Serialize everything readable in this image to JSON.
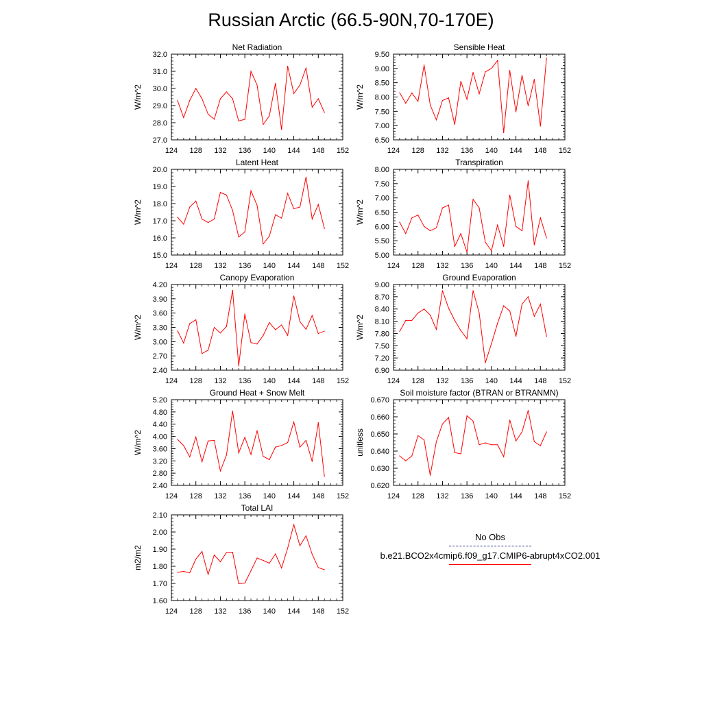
{
  "figure": {
    "title": "Russian Arctic (66.5-90N,70-170E)"
  },
  "legend": {
    "obs_label": "No Obs",
    "obs_color": "#1a237e",
    "model_label": "b.e21.BCO2x4cmip6.f09_g17.CMIP6-abrupt4xCO2.001",
    "model_color": "#ff0000"
  },
  "chart_data": [
    {
      "type": "line",
      "title": "Net Radiation",
      "ylabel": "W/m^2",
      "xlim": [
        124,
        152
      ],
      "ylim": [
        27.0,
        32.0
      ],
      "xticks": [
        124,
        128,
        132,
        136,
        140,
        144,
        148,
        152
      ],
      "yticks": [
        "27.0",
        "28.0",
        "29.0",
        "30.0",
        "31.0",
        "32.0"
      ],
      "series": [
        {
          "color": "#ff0000",
          "x": [
            125,
            126,
            127,
            128,
            129,
            130,
            131,
            132,
            133,
            134,
            135,
            136,
            137,
            138,
            139,
            140,
            141,
            142,
            143,
            144,
            145,
            146,
            147,
            148,
            149
          ],
          "y": [
            29.3,
            28.3,
            29.3,
            30.0,
            29.4,
            28.5,
            28.2,
            29.4,
            29.8,
            29.4,
            28.1,
            28.2,
            31.0,
            30.2,
            27.9,
            28.4,
            30.3,
            27.6,
            31.3,
            29.7,
            30.2,
            31.2,
            28.9,
            29.4,
            28.6
          ]
        }
      ]
    },
    {
      "type": "line",
      "title": "Sensible Heat",
      "ylabel": "W/m^2",
      "xlim": [
        124,
        152
      ],
      "ylim": [
        6.5,
        9.5
      ],
      "xticks": [
        124,
        128,
        132,
        136,
        140,
        144,
        148,
        152
      ],
      "yticks": [
        "6.50",
        "7.00",
        "7.50",
        "8.00",
        "8.50",
        "9.00",
        "9.50"
      ],
      "series": [
        {
          "color": "#ff0000",
          "x": [
            125,
            126,
            127,
            128,
            129,
            130,
            131,
            132,
            133,
            134,
            135,
            136,
            137,
            138,
            139,
            140,
            141,
            142,
            143,
            144,
            145,
            146,
            147,
            148,
            149
          ],
          "y": [
            8.15,
            7.78,
            8.14,
            7.85,
            9.12,
            7.72,
            7.2,
            7.88,
            7.97,
            7.04,
            8.55,
            7.92,
            8.86,
            8.11,
            8.88,
            9.0,
            9.28,
            6.75,
            8.93,
            7.48,
            8.76,
            7.69,
            8.62,
            6.98,
            9.37
          ]
        }
      ]
    },
    {
      "type": "line",
      "title": "Latent Heat",
      "ylabel": "W/m^2",
      "xlim": [
        124,
        152
      ],
      "ylim": [
        15.0,
        20.0
      ],
      "xticks": [
        124,
        128,
        132,
        136,
        140,
        144,
        148,
        152
      ],
      "yticks": [
        "15.0",
        "16.0",
        "17.0",
        "18.0",
        "19.0",
        "20.0"
      ],
      "series": [
        {
          "color": "#ff0000",
          "x": [
            125,
            126,
            127,
            128,
            129,
            130,
            131,
            132,
            133,
            134,
            135,
            136,
            137,
            138,
            139,
            140,
            141,
            142,
            143,
            144,
            145,
            146,
            147,
            148,
            149
          ],
          "y": [
            17.2,
            16.8,
            17.8,
            18.15,
            17.1,
            16.9,
            17.1,
            18.65,
            18.5,
            17.6,
            16.05,
            16.35,
            18.75,
            17.9,
            15.65,
            16.1,
            17.35,
            17.15,
            18.6,
            17.7,
            17.8,
            19.55,
            17.1,
            17.95,
            16.55
          ]
        }
      ]
    },
    {
      "type": "line",
      "title": "Transpiration",
      "ylabel": "W/m^2",
      "xlim": [
        124,
        152
      ],
      "ylim": [
        5.0,
        8.0
      ],
      "xticks": [
        124,
        128,
        132,
        136,
        140,
        144,
        148,
        152
      ],
      "yticks": [
        "5.00",
        "5.50",
        "6.00",
        "6.50",
        "7.00",
        "7.50",
        "8.00"
      ],
      "series": [
        {
          "color": "#ff0000",
          "x": [
            125,
            126,
            127,
            128,
            129,
            130,
            131,
            132,
            133,
            134,
            135,
            136,
            137,
            138,
            139,
            140,
            141,
            142,
            143,
            144,
            145,
            146,
            147,
            148,
            149
          ],
          "y": [
            6.15,
            5.75,
            6.3,
            6.4,
            6.0,
            5.85,
            5.95,
            6.65,
            6.75,
            5.3,
            5.75,
            5.1,
            6.95,
            6.65,
            5.45,
            5.15,
            6.05,
            5.3,
            7.1,
            6.0,
            5.85,
            7.6,
            5.35,
            6.3,
            5.6
          ]
        }
      ]
    },
    {
      "type": "line",
      "title": "Canopy Evaporation",
      "ylabel": "W/m^2",
      "xlim": [
        124,
        152
      ],
      "ylim": [
        2.4,
        4.2
      ],
      "xticks": [
        124,
        128,
        132,
        136,
        140,
        144,
        148,
        152
      ],
      "yticks": [
        "2.40",
        "2.70",
        "3.00",
        "3.30",
        "3.60",
        "3.90",
        "4.20"
      ],
      "series": [
        {
          "color": "#ff0000",
          "x": [
            125,
            126,
            127,
            128,
            129,
            130,
            131,
            132,
            133,
            134,
            135,
            136,
            137,
            138,
            139,
            140,
            141,
            142,
            143,
            144,
            145,
            146,
            147,
            148,
            149
          ],
          "y": [
            3.23,
            2.97,
            3.38,
            3.46,
            2.75,
            2.82,
            3.3,
            3.18,
            3.32,
            4.08,
            2.49,
            3.58,
            2.98,
            2.95,
            3.13,
            3.4,
            3.25,
            3.35,
            3.13,
            3.96,
            3.42,
            3.26,
            3.55,
            3.17,
            3.22
          ]
        }
      ]
    },
    {
      "type": "line",
      "title": "Ground Evaporation",
      "ylabel": "W/m^2",
      "xlim": [
        124,
        152
      ],
      "ylim": [
        6.9,
        9.0
      ],
      "xticks": [
        124,
        128,
        132,
        136,
        140,
        144,
        148,
        152
      ],
      "yticks": [
        "6.90",
        "7.20",
        "7.50",
        "7.80",
        "8.10",
        "8.40",
        "8.70",
        "9.00"
      ],
      "series": [
        {
          "color": "#ff0000",
          "x": [
            125,
            126,
            127,
            128,
            129,
            130,
            131,
            132,
            133,
            134,
            135,
            136,
            137,
            138,
            139,
            140,
            141,
            142,
            143,
            144,
            145,
            146,
            147,
            148,
            149
          ],
          "y": [
            7.85,
            8.12,
            8.12,
            8.3,
            8.4,
            8.25,
            7.9,
            8.85,
            8.42,
            8.12,
            7.87,
            7.67,
            8.85,
            8.3,
            7.08,
            7.55,
            8.05,
            8.48,
            8.35,
            7.73,
            8.52,
            8.7,
            8.22,
            8.52,
            7.73
          ]
        }
      ]
    },
    {
      "type": "line",
      "title": "Ground Heat + Snow Melt",
      "ylabel": "W/m^2",
      "xlim": [
        124,
        152
      ],
      "ylim": [
        2.4,
        5.2
      ],
      "xticks": [
        124,
        128,
        132,
        136,
        140,
        144,
        148,
        152
      ],
      "yticks": [
        "2.40",
        "2.80",
        "3.20",
        "3.60",
        "4.00",
        "4.40",
        "4.80",
        "5.20"
      ],
      "series": [
        {
          "color": "#ff0000",
          "x": [
            125,
            126,
            127,
            128,
            129,
            130,
            131,
            132,
            133,
            134,
            135,
            136,
            137,
            138,
            139,
            140,
            141,
            142,
            143,
            144,
            145,
            146,
            147,
            148,
            149
          ],
          "y": [
            3.9,
            3.7,
            3.33,
            3.98,
            3.17,
            3.85,
            3.87,
            2.87,
            3.39,
            4.83,
            3.46,
            3.97,
            3.41,
            4.19,
            3.35,
            3.24,
            3.65,
            3.7,
            3.8,
            4.47,
            3.65,
            3.87,
            3.18,
            4.45,
            2.69
          ]
        }
      ]
    },
    {
      "type": "line",
      "title": "Soil moisture factor (BTRAN or BTRANMN)",
      "ylabel": "unitless",
      "xlim": [
        124,
        152
      ],
      "ylim": [
        0.62,
        0.67
      ],
      "xticks": [
        124,
        128,
        132,
        136,
        140,
        144,
        148,
        152
      ],
      "yticks": [
        "0.620",
        "0.630",
        "0.640",
        "0.650",
        "0.660",
        "0.670"
      ],
      "series": [
        {
          "color": "#ff0000",
          "x": [
            125,
            126,
            127,
            128,
            129,
            130,
            131,
            132,
            133,
            134,
            135,
            136,
            137,
            138,
            139,
            140,
            141,
            142,
            143,
            144,
            145,
            146,
            147,
            148,
            149
          ],
          "y": [
            0.6372,
            0.6343,
            0.6372,
            0.649,
            0.6465,
            0.6259,
            0.6455,
            0.6558,
            0.6596,
            0.6391,
            0.6384,
            0.6606,
            0.6575,
            0.6437,
            0.6448,
            0.6437,
            0.6437,
            0.6367,
            0.6581,
            0.6459,
            0.6512,
            0.6637,
            0.6455,
            0.6432,
            0.6512
          ]
        }
      ]
    },
    {
      "type": "line",
      "title": "Total LAI",
      "ylabel": "m2/m2",
      "xlim": [
        124,
        152
      ],
      "ylim": [
        1.6,
        2.1
      ],
      "xticks": [
        124,
        128,
        132,
        136,
        140,
        144,
        148,
        152
      ],
      "yticks": [
        "1.60",
        "1.70",
        "1.80",
        "1.90",
        "2.00",
        "2.10"
      ],
      "series": [
        {
          "color": "#ff0000",
          "x": [
            125,
            126,
            127,
            128,
            129,
            130,
            131,
            132,
            133,
            134,
            135,
            136,
            137,
            138,
            139,
            140,
            141,
            142,
            143,
            144,
            145,
            146,
            147,
            148,
            149
          ],
          "y": [
            1.765,
            1.77,
            1.762,
            1.842,
            1.886,
            1.752,
            1.866,
            1.826,
            1.88,
            1.882,
            1.698,
            1.702,
            1.774,
            1.848,
            1.834,
            1.818,
            1.872,
            1.79,
            1.906,
            2.043,
            1.92,
            1.978,
            1.87,
            1.792,
            1.78
          ]
        }
      ]
    }
  ]
}
